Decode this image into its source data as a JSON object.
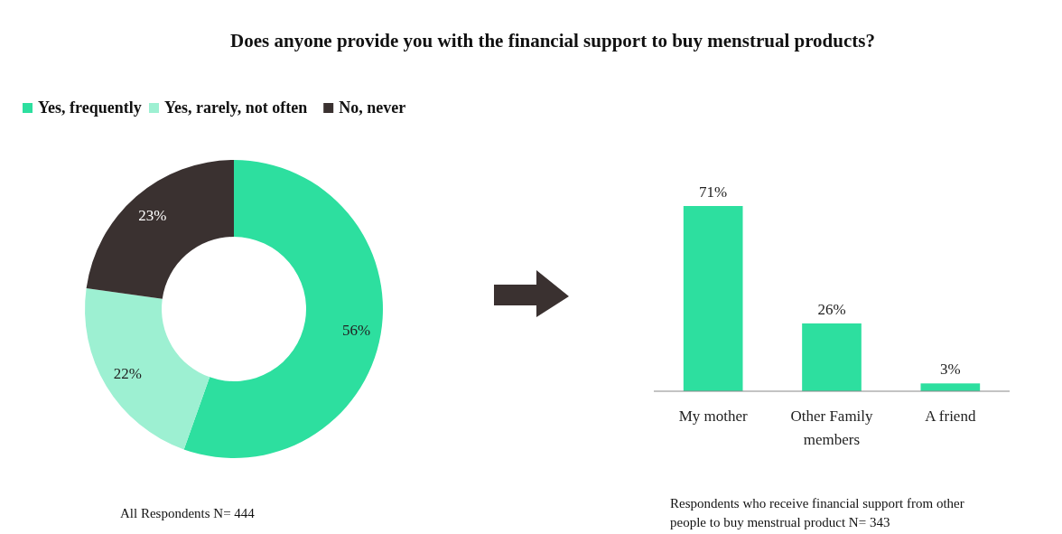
{
  "chart_data": [
    {
      "type": "donut",
      "title": "Does anyone provide you with the financial support to buy menstrual products?",
      "categories": [
        "Yes, frequently",
        "Yes, rarely, not often",
        "No, never"
      ],
      "values": [
        56,
        22,
        23
      ],
      "colors": [
        "#2ddf9f",
        "#9df0d2",
        "#3a3130"
      ],
      "legend": "top left",
      "value_labels": [
        "56%",
        "22%",
        "23%"
      ],
      "annotations": [
        "All Respondents N= 444"
      ]
    },
    {
      "type": "bar",
      "categories": [
        "My mother",
        "Other Family members",
        "A friend"
      ],
      "values": [
        71,
        26,
        3
      ],
      "color": "#2ddf9f",
      "value_labels": [
        "71%",
        "26%",
        "3%"
      ],
      "annotations": [
        "Respondents who receive financial support from other people to buy menstrual product N= 343"
      ]
    }
  ]
}
